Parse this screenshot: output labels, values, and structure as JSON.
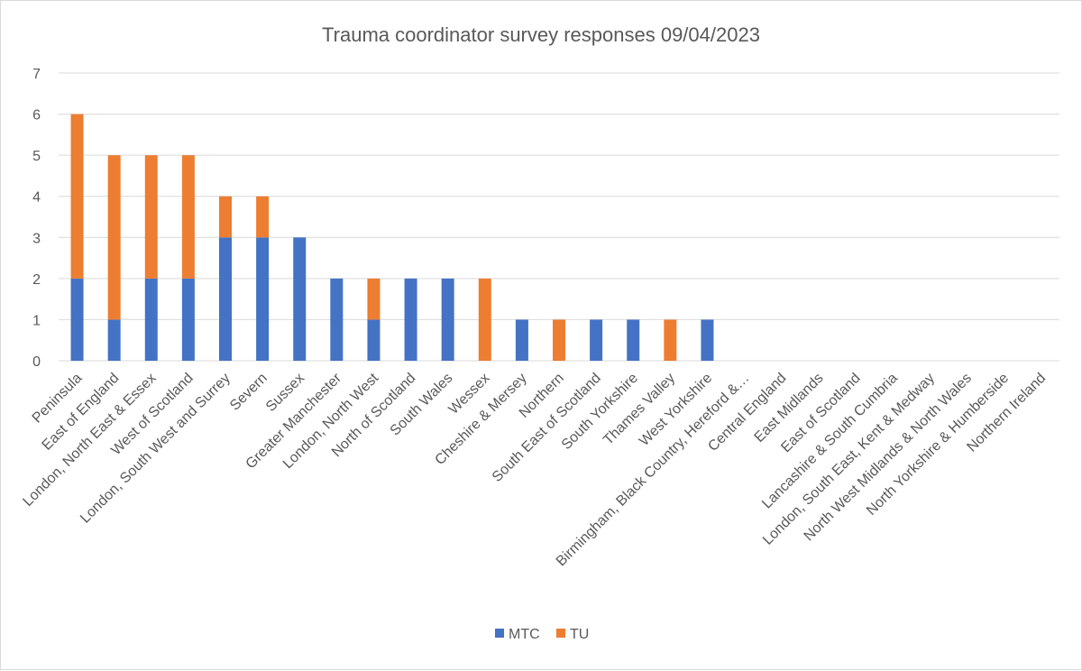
{
  "chart_data": {
    "type": "bar",
    "stacked": true,
    "title": "Trauma coordinator survey responses 09/04/2023",
    "xlabel": "",
    "ylabel": "",
    "ylim": [
      0,
      7
    ],
    "yticks": [
      "0",
      "1",
      "2",
      "3",
      "4",
      "5",
      "6",
      "7"
    ],
    "grid": true,
    "legend_position": "bottom",
    "categories": [
      "Peninsula",
      "East of England",
      "London, North East & Essex",
      "West of Scotland",
      "London, South West and Surrey",
      "Severn",
      "Sussex",
      "Greater Manchester",
      "London, North West",
      "North of Scotland",
      "South Wales",
      "Wessex",
      "Cheshire & Mersey",
      "Northern",
      "South East of Scotland",
      "South Yorkshire",
      "Thames Valley",
      "West Yorkshire",
      "Birmingham, Black Country, Hereford &…",
      "Central England",
      "East Midlands",
      "East of Scotland",
      "Lancashire & South Cumbria",
      "London, South East, Kent & Medway",
      "North West Midlands & North Wales",
      "North Yorkshire & Humberside",
      "Northern Ireland"
    ],
    "series": [
      {
        "name": "MTC",
        "color": "#4472c4",
        "values": [
          2,
          1,
          2,
          2,
          3,
          3,
          3,
          2,
          1,
          2,
          2,
          0,
          1,
          0,
          1,
          1,
          0,
          1,
          0,
          0,
          0,
          0,
          0,
          0,
          0,
          0,
          0
        ]
      },
      {
        "name": "TU",
        "color": "#ed7d31",
        "values": [
          4,
          4,
          3,
          3,
          1,
          1,
          0,
          0,
          1,
          0,
          0,
          2,
          0,
          1,
          0,
          0,
          1,
          0,
          0,
          0,
          0,
          0,
          0,
          0,
          0,
          0,
          0
        ]
      }
    ]
  }
}
